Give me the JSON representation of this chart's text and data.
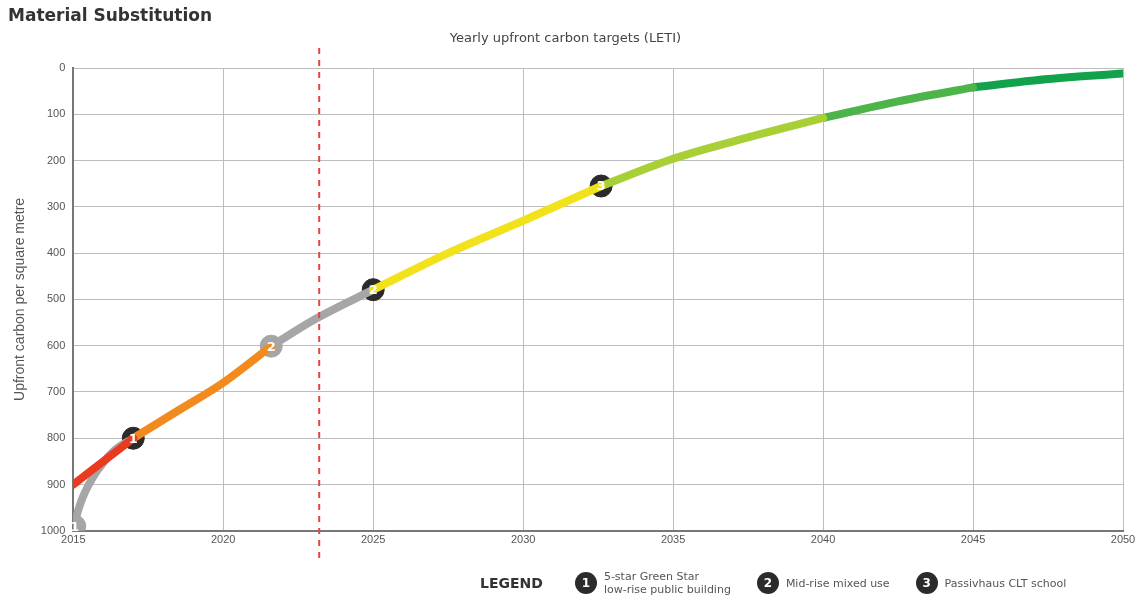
{
  "chart_data": {
    "type": "line",
    "title": "Material Substitution",
    "subtitle": "Yearly upfront carbon targets (LETI)",
    "ylabel": "Upfront carbon per square metre",
    "legend_title": "LEGEND",
    "xlim": [
      2015,
      2050
    ],
    "xticks": [
      2015,
      2020,
      2025,
      2030,
      2035,
      2040,
      2045,
      2050
    ],
    "ylim": [
      1000,
      0
    ],
    "yticks": [
      0,
      100,
      200,
      300,
      400,
      500,
      600,
      700,
      800,
      900,
      1000
    ],
    "grid": true,
    "ref_lines": [
      {
        "axis": "x",
        "value": 2023.2,
        "color": "#e0483e",
        "line_style": "dashed"
      }
    ],
    "series": [
      {
        "color": "#ea3a1f",
        "x": [
          2015,
          2016,
          2017
        ],
        "values": [
          900,
          850,
          800
        ]
      },
      {
        "color": "#f28a1e",
        "x": [
          2017,
          2018.5,
          2020,
          2021.6
        ],
        "values": [
          800,
          740,
          680,
          601
        ]
      },
      {
        "color": "#f2e21c",
        "x": [
          2025,
          2027.5,
          2030,
          2032.6
        ],
        "values": [
          479,
          400,
          330,
          255
        ]
      },
      {
        "color": "#a8cf36",
        "x": [
          2032.6,
          2035,
          2037.5,
          2040
        ],
        "values": [
          255,
          196,
          150,
          108
        ]
      },
      {
        "color": "#4cb448",
        "x": [
          2040,
          2042.5,
          2045
        ],
        "values": [
          108,
          72,
          42
        ]
      },
      {
        "color": "#12a24c",
        "x": [
          2045,
          2047.5,
          2050
        ],
        "values": [
          42,
          24,
          12
        ]
      },
      {
        "color": "#a6a6a6",
        "x": [
          2015,
          2015.3,
          2015.8,
          2016.4,
          2017
        ],
        "values": [
          990,
          930,
          870,
          825,
          800
        ]
      },
      {
        "color": "#a6a6a6",
        "x": [
          2021.6,
          2023,
          2025
        ],
        "values": [
          601,
          545,
          479
        ]
      },
      {
        "type": "scatter",
        "marker": "circle",
        "x": [
          2015.05,
          2017,
          2021.6,
          2025,
          2032.6
        ],
        "values": [
          990,
          800,
          601,
          479,
          255
        ],
        "colors": [
          "#a6a6a6",
          "#2b2b2b",
          "#a6a6a6",
          "#2b2b2b",
          "#2b2b2b"
        ]
      }
    ],
    "annotations": [
      {
        "text": "1",
        "x": 2015.05,
        "y": 990
      },
      {
        "text": "1",
        "x": 2017,
        "y": 800
      },
      {
        "text": "2",
        "x": 2021.6,
        "y": 601
      },
      {
        "text": "2",
        "x": 2025,
        "y": 479
      },
      {
        "text": "3",
        "x": 2032.6,
        "y": 255
      },
      "5-star Green Star\nlow-rise public building",
      "Mid-rise mixed use",
      "Passivhaus CLT school"
    ]
  }
}
